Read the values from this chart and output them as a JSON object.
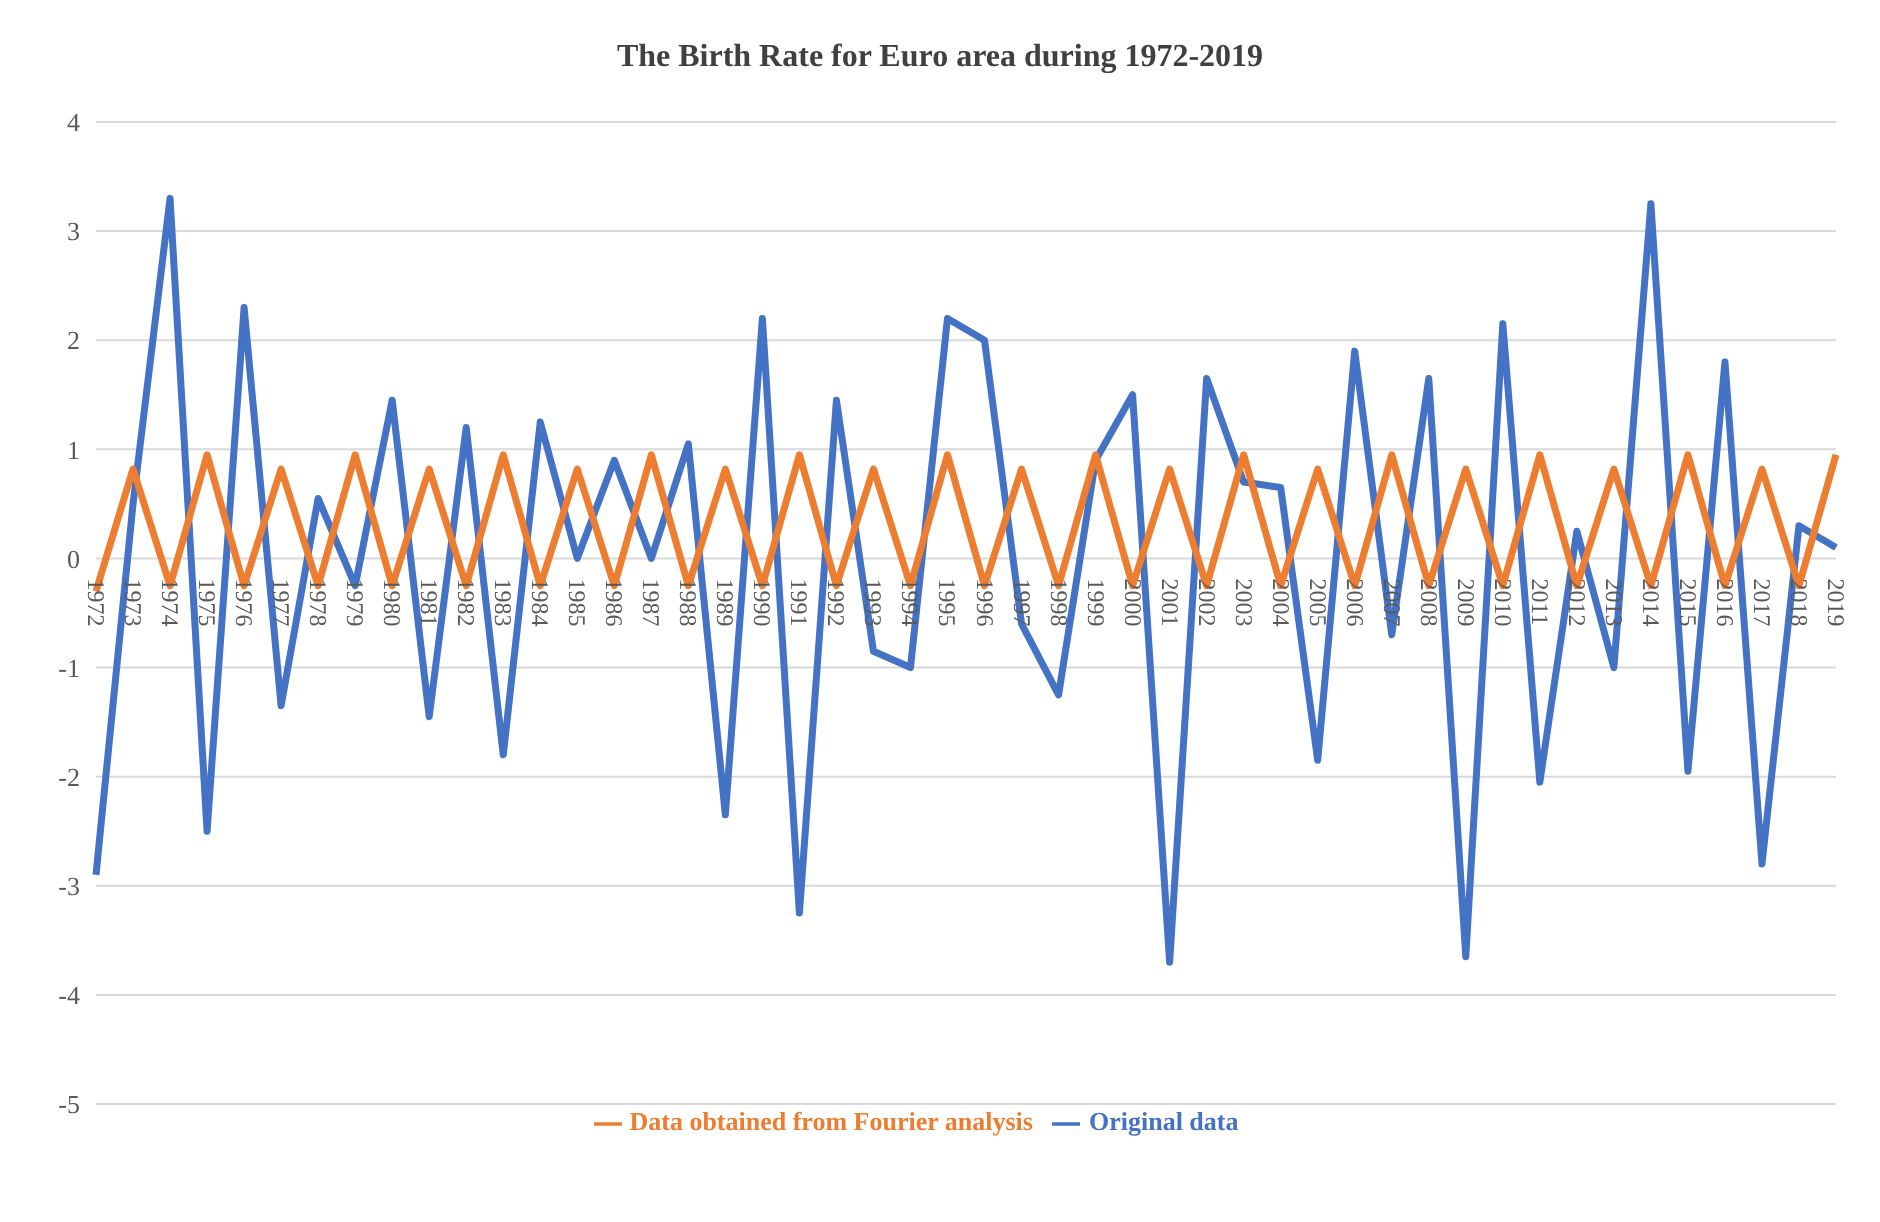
{
  "chart_data": {
    "type": "line",
    "title": "The Birth Rate for Euro area during  1972-2019",
    "categories": [
      "1972",
      "1973",
      "1974",
      "1975",
      "1976",
      "1977",
      "1978",
      "1979",
      "1980",
      "1981",
      "1982",
      "1983",
      "1984",
      "1985",
      "1986",
      "1987",
      "1988",
      "1989",
      "1990",
      "1991",
      "1992",
      "1993",
      "1994",
      "1995",
      "1996",
      "1997",
      "1998",
      "1999",
      "2000",
      "2001",
      "2002",
      "2003",
      "2004",
      "2005",
      "2006",
      "2007",
      "2008",
      "2009",
      "2010",
      "2011",
      "2012",
      "2013",
      "2014",
      "2015",
      "2016",
      "2017",
      "2018",
      "2019"
    ],
    "series": [
      {
        "name": "Original data",
        "color": "#4472c4",
        "values": [
          -2.9,
          0.5,
          3.3,
          -2.5,
          2.3,
          -1.35,
          0.55,
          -0.25,
          1.45,
          -1.45,
          1.2,
          -1.8,
          1.25,
          0.0,
          0.9,
          0.0,
          1.05,
          -2.35,
          2.2,
          -3.25,
          1.45,
          -0.85,
          -1.0,
          2.2,
          2.0,
          -0.6,
          -1.25,
          0.9,
          1.5,
          -3.7,
          1.65,
          0.7,
          0.65,
          -1.85,
          1.9,
          -0.7,
          1.65,
          -3.65,
          2.15,
          -2.05,
          0.25,
          -1.0,
          3.25,
          -1.95,
          1.8,
          -2.8,
          0.3,
          0.1
        ]
      },
      {
        "name": "Data obtained from Fourier analysis",
        "color": "#ed7d31",
        "values": [
          -0.3,
          0.82,
          -0.25,
          0.95,
          -0.25,
          0.82,
          -0.25,
          0.95,
          -0.25,
          0.82,
          -0.25,
          0.95,
          -0.25,
          0.82,
          -0.25,
          0.95,
          -0.25,
          0.82,
          -0.25,
          0.95,
          -0.25,
          0.82,
          -0.25,
          0.95,
          -0.25,
          0.82,
          -0.25,
          0.95,
          -0.25,
          0.82,
          -0.25,
          0.95,
          -0.25,
          0.82,
          -0.25,
          0.95,
          -0.25,
          0.82,
          -0.25,
          0.95,
          -0.25,
          0.82,
          -0.25,
          0.95,
          -0.25,
          0.82,
          -0.25,
          0.95
        ]
      }
    ],
    "ylim": [
      -5,
      4
    ],
    "yticks": [
      -5,
      -4,
      -3,
      -2,
      -1,
      0,
      1,
      2,
      3,
      4
    ],
    "grid": "y",
    "legend": "bottom",
    "marker": "none",
    "line_style": "solid"
  }
}
